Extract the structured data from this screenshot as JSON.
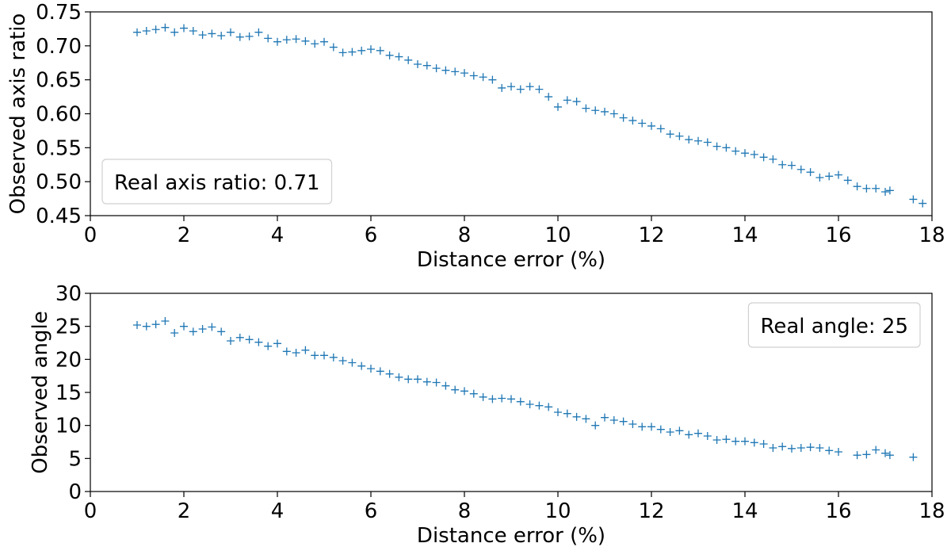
{
  "chart_data": [
    {
      "type": "scatter",
      "xlabel": "Distance error (%)",
      "ylabel": "Observed axis ratio",
      "annotation": "Real axis ratio: 0.71",
      "annotation_loc": "lower left",
      "color": "#1f77b4",
      "marker": "+",
      "x": [
        1.0,
        1.2,
        1.4,
        1.6,
        1.8,
        2.0,
        2.2,
        2.4,
        2.6,
        2.8,
        3.0,
        3.2,
        3.4,
        3.6,
        3.8,
        4.0,
        4.2,
        4.4,
        4.6,
        4.8,
        5.0,
        5.2,
        5.4,
        5.6,
        5.8,
        6.0,
        6.2,
        6.4,
        6.6,
        6.8,
        7.0,
        7.2,
        7.4,
        7.6,
        7.8,
        8.0,
        8.2,
        8.4,
        8.6,
        8.8,
        9.0,
        9.2,
        9.4,
        9.6,
        9.8,
        10.0,
        10.2,
        10.4,
        10.6,
        10.8,
        11.0,
        11.2,
        11.4,
        11.6,
        11.8,
        12.0,
        12.2,
        12.4,
        12.6,
        12.8,
        13.0,
        13.2,
        13.4,
        13.6,
        13.8,
        14.0,
        14.2,
        14.4,
        14.6,
        14.8,
        15.0,
        15.2,
        15.4,
        15.6,
        15.8,
        16.0,
        16.2,
        16.4,
        16.6,
        16.8,
        17.0,
        17.1,
        17.6,
        17.8
      ],
      "values": [
        0.72,
        0.722,
        0.724,
        0.727,
        0.72,
        0.726,
        0.722,
        0.716,
        0.718,
        0.715,
        0.72,
        0.713,
        0.714,
        0.72,
        0.711,
        0.706,
        0.709,
        0.71,
        0.707,
        0.703,
        0.706,
        0.698,
        0.69,
        0.691,
        0.693,
        0.695,
        0.693,
        0.686,
        0.684,
        0.679,
        0.673,
        0.671,
        0.667,
        0.664,
        0.662,
        0.66,
        0.656,
        0.654,
        0.65,
        0.638,
        0.64,
        0.636,
        0.64,
        0.636,
        0.625,
        0.61,
        0.62,
        0.618,
        0.608,
        0.605,
        0.603,
        0.6,
        0.594,
        0.59,
        0.586,
        0.582,
        0.578,
        0.57,
        0.567,
        0.562,
        0.56,
        0.558,
        0.552,
        0.55,
        0.545,
        0.542,
        0.54,
        0.536,
        0.533,
        0.525,
        0.524,
        0.518,
        0.514,
        0.506,
        0.508,
        0.51,
        0.502,
        0.493,
        0.49,
        0.49,
        0.485,
        0.487,
        0.474,
        0.468
      ],
      "xlim": [
        0,
        18
      ],
      "xticks": [
        0,
        2,
        4,
        6,
        8,
        10,
        12,
        14,
        16,
        18
      ],
      "ylim": [
        0.45,
        0.75
      ],
      "yticks": [
        0.45,
        {
          "value": 0.5,
          "label": "0.50"
        },
        0.55,
        {
          "value": 0.6,
          "label": "0.60"
        },
        0.65,
        {
          "value": 0.7,
          "label": "0.70"
        },
        0.75
      ]
    },
    {
      "type": "scatter",
      "xlabel": "Distance error (%)",
      "ylabel": "Observed angle",
      "annotation": "Real angle: 25",
      "annotation_loc": "upper right",
      "color": "#1f77b4",
      "marker": "+",
      "x": [
        1.0,
        1.2,
        1.4,
        1.6,
        1.8,
        2.0,
        2.2,
        2.4,
        2.6,
        2.8,
        3.0,
        3.2,
        3.4,
        3.6,
        3.8,
        4.0,
        4.2,
        4.4,
        4.6,
        4.8,
        5.0,
        5.2,
        5.4,
        5.6,
        5.8,
        6.0,
        6.2,
        6.4,
        6.6,
        6.8,
        7.0,
        7.2,
        7.4,
        7.6,
        7.8,
        8.0,
        8.2,
        8.4,
        8.6,
        8.8,
        9.0,
        9.2,
        9.4,
        9.6,
        9.8,
        10.0,
        10.2,
        10.4,
        10.6,
        10.8,
        11.0,
        11.2,
        11.4,
        11.6,
        11.8,
        12.0,
        12.2,
        12.4,
        12.6,
        12.8,
        13.0,
        13.2,
        13.4,
        13.6,
        13.8,
        14.0,
        14.2,
        14.4,
        14.6,
        14.8,
        15.0,
        15.2,
        15.4,
        15.6,
        15.8,
        16.0,
        16.4,
        16.6,
        16.8,
        17.0,
        17.1,
        17.6
      ],
      "values": [
        25.2,
        25.0,
        25.3,
        25.8,
        24.0,
        25.0,
        24.2,
        24.6,
        24.9,
        24.2,
        22.8,
        23.3,
        23.0,
        22.6,
        22.0,
        22.4,
        21.2,
        21.0,
        21.4,
        20.6,
        20.6,
        20.3,
        19.8,
        19.5,
        19.0,
        18.6,
        18.2,
        17.8,
        17.3,
        17.0,
        17.0,
        16.6,
        16.5,
        16.0,
        15.4,
        15.2,
        14.8,
        14.3,
        14.0,
        14.1,
        14.0,
        13.6,
        13.2,
        13.0,
        12.8,
        12.0,
        11.8,
        11.3,
        11.0,
        10.0,
        11.2,
        10.8,
        10.6,
        10.2,
        9.8,
        9.8,
        9.4,
        9.0,
        9.2,
        8.6,
        8.8,
        8.4,
        7.8,
        7.9,
        7.6,
        7.6,
        7.4,
        7.2,
        6.6,
        6.8,
        6.5,
        6.6,
        6.7,
        6.6,
        6.2,
        6.0,
        5.5,
        5.6,
        6.3,
        5.8,
        5.5,
        5.2
      ],
      "xlim": [
        0,
        18
      ],
      "xticks": [
        0,
        2,
        4,
        6,
        8,
        10,
        12,
        14,
        16,
        18
      ],
      "ylim": [
        0,
        30
      ],
      "yticks": [
        0,
        5,
        10,
        15,
        20,
        25,
        30
      ]
    }
  ]
}
